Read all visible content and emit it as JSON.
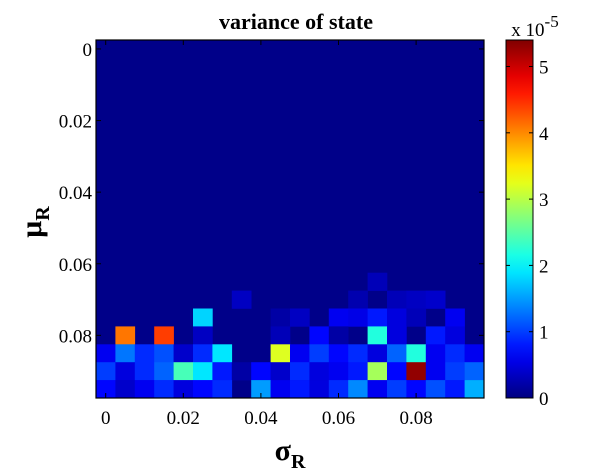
{
  "chart_data": {
    "type": "heatmap",
    "title": "variance of state",
    "xlabel": {
      "base": "σ",
      "sub": "R"
    },
    "ylabel": {
      "base": "μ",
      "sub": "R"
    },
    "x_ticks": [
      "0",
      "0.02",
      "0.04",
      "0.06",
      "0.08"
    ],
    "y_ticks": [
      "0",
      "0.02",
      "0.04",
      "0.06",
      "0.08"
    ],
    "x_tick_values": [
      0,
      0.02,
      0.04,
      0.06,
      0.08
    ],
    "y_tick_values": [
      0,
      0.02,
      0.04,
      0.06,
      0.08
    ],
    "xlim": [
      -0.0025,
      0.0975
    ],
    "ylim": [
      -0.0025,
      0.0975
    ],
    "y_direction": "down",
    "grid_step": 0.005,
    "grid_n": 20,
    "colorbar": {
      "min": 0,
      "max": 5.4,
      "ticks": [
        "0",
        "1",
        "2",
        "3",
        "4",
        "5"
      ],
      "tick_values": [
        0,
        1,
        2,
        3,
        4,
        5
      ],
      "multiplier_base": "x 10",
      "multiplier_exp": "-5",
      "colormap": "jet"
    },
    "background_value": 0.05,
    "cells": [
      {
        "x": 0.07,
        "y": 0.065,
        "v": 0.3
      },
      {
        "x": 0.065,
        "y": 0.07,
        "v": 0.25
      },
      {
        "x": 0.075,
        "y": 0.07,
        "v": 0.3
      },
      {
        "x": 0.08,
        "y": 0.07,
        "v": 0.35
      },
      {
        "x": 0.085,
        "y": 0.07,
        "v": 0.4
      },
      {
        "x": 0.035,
        "y": 0.07,
        "v": 0.35
      },
      {
        "x": 0.025,
        "y": 0.075,
        "v": 1.8
      },
      {
        "x": 0.045,
        "y": 0.075,
        "v": 0.2
      },
      {
        "x": 0.05,
        "y": 0.075,
        "v": 0.35
      },
      {
        "x": 0.06,
        "y": 0.075,
        "v": 0.6
      },
      {
        "x": 0.065,
        "y": 0.075,
        "v": 0.55
      },
      {
        "x": 0.07,
        "y": 0.075,
        "v": 0.8
      },
      {
        "x": 0.075,
        "y": 0.075,
        "v": 0.5
      },
      {
        "x": 0.08,
        "y": 0.075,
        "v": 0.3
      },
      {
        "x": 0.09,
        "y": 0.075,
        "v": 0.6
      },
      {
        "x": 0.005,
        "y": 0.08,
        "v": 4.1
      },
      {
        "x": 0.015,
        "y": 0.08,
        "v": 4.4
      },
      {
        "x": 0.025,
        "y": 0.08,
        "v": 0.35
      },
      {
        "x": 0.045,
        "y": 0.08,
        "v": 0.3
      },
      {
        "x": 0.055,
        "y": 0.08,
        "v": 0.7
      },
      {
        "x": 0.06,
        "y": 0.08,
        "v": 0.2
      },
      {
        "x": 0.07,
        "y": 0.08,
        "v": 2.2
      },
      {
        "x": 0.075,
        "y": 0.08,
        "v": 0.5
      },
      {
        "x": 0.085,
        "y": 0.08,
        "v": 0.8
      },
      {
        "x": 0.09,
        "y": 0.08,
        "v": 0.5
      },
      {
        "x": 0.0,
        "y": 0.085,
        "v": 0.6
      },
      {
        "x": 0.005,
        "y": 0.085,
        "v": 1.3
      },
      {
        "x": 0.01,
        "y": 0.085,
        "v": 0.9
      },
      {
        "x": 0.015,
        "y": 0.085,
        "v": 1.1
      },
      {
        "x": 0.02,
        "y": 0.085,
        "v": 0.4
      },
      {
        "x": 0.025,
        "y": 0.085,
        "v": 0.9
      },
      {
        "x": 0.03,
        "y": 0.085,
        "v": 1.9
      },
      {
        "x": 0.045,
        "y": 0.085,
        "v": 3.2
      },
      {
        "x": 0.05,
        "y": 0.085,
        "v": 0.6
      },
      {
        "x": 0.055,
        "y": 0.085,
        "v": 1.0
      },
      {
        "x": 0.06,
        "y": 0.085,
        "v": 0.7
      },
      {
        "x": 0.065,
        "y": 0.085,
        "v": 0.9
      },
      {
        "x": 0.07,
        "y": 0.085,
        "v": 0.5
      },
      {
        "x": 0.075,
        "y": 0.085,
        "v": 1.2
      },
      {
        "x": 0.08,
        "y": 0.085,
        "v": 2.2
      },
      {
        "x": 0.085,
        "y": 0.085,
        "v": 0.6
      },
      {
        "x": 0.09,
        "y": 0.085,
        "v": 0.9
      },
      {
        "x": 0.095,
        "y": 0.085,
        "v": 0.6
      },
      {
        "x": -0.0,
        "y": 0.09,
        "v": 1.0
      },
      {
        "x": 0.005,
        "y": 0.09,
        "v": 0.5
      },
      {
        "x": 0.01,
        "y": 0.09,
        "v": 0.9
      },
      {
        "x": 0.015,
        "y": 0.09,
        "v": 1.2
      },
      {
        "x": 0.02,
        "y": 0.09,
        "v": 2.4
      },
      {
        "x": 0.025,
        "y": 0.09,
        "v": 1.9
      },
      {
        "x": 0.03,
        "y": 0.09,
        "v": 0.8
      },
      {
        "x": 0.035,
        "y": 0.09,
        "v": 0.2
      },
      {
        "x": 0.04,
        "y": 0.09,
        "v": 0.7
      },
      {
        "x": 0.045,
        "y": 0.09,
        "v": 0.4
      },
      {
        "x": 0.05,
        "y": 0.09,
        "v": 0.9
      },
      {
        "x": 0.055,
        "y": 0.09,
        "v": 0.5
      },
      {
        "x": 0.06,
        "y": 0.09,
        "v": 0.6
      },
      {
        "x": 0.065,
        "y": 0.09,
        "v": 0.8
      },
      {
        "x": 0.07,
        "y": 0.09,
        "v": 2.9
      },
      {
        "x": 0.075,
        "y": 0.09,
        "v": 0.7
      },
      {
        "x": 0.08,
        "y": 0.09,
        "v": 5.3
      },
      {
        "x": 0.085,
        "y": 0.09,
        "v": 0.6
      },
      {
        "x": 0.09,
        "y": 0.09,
        "v": 1.0
      },
      {
        "x": 0.095,
        "y": 0.09,
        "v": 1.2
      },
      {
        "x": 0.0,
        "y": 0.095,
        "v": 0.7
      },
      {
        "x": 0.005,
        "y": 0.095,
        "v": 0.4
      },
      {
        "x": 0.01,
        "y": 0.095,
        "v": 0.6
      },
      {
        "x": 0.015,
        "y": 0.095,
        "v": 0.9
      },
      {
        "x": 0.02,
        "y": 0.095,
        "v": 0.5
      },
      {
        "x": 0.025,
        "y": 0.095,
        "v": 0.7
      },
      {
        "x": 0.03,
        "y": 0.095,
        "v": 0.9
      },
      {
        "x": 0.04,
        "y": 0.095,
        "v": 1.5
      },
      {
        "x": 0.045,
        "y": 0.095,
        "v": 0.6
      },
      {
        "x": 0.05,
        "y": 0.095,
        "v": 0.8
      },
      {
        "x": 0.055,
        "y": 0.095,
        "v": 0.5
      },
      {
        "x": 0.06,
        "y": 0.095,
        "v": 0.9
      },
      {
        "x": 0.065,
        "y": 0.095,
        "v": 1.4
      },
      {
        "x": 0.07,
        "y": 0.095,
        "v": 0.6
      },
      {
        "x": 0.075,
        "y": 0.095,
        "v": 1.0
      },
      {
        "x": 0.08,
        "y": 0.095,
        "v": 0.7
      },
      {
        "x": 0.085,
        "y": 0.095,
        "v": 1.1
      },
      {
        "x": 0.09,
        "y": 0.095,
        "v": 0.8
      },
      {
        "x": 0.095,
        "y": 0.095,
        "v": 1.6
      }
    ]
  }
}
